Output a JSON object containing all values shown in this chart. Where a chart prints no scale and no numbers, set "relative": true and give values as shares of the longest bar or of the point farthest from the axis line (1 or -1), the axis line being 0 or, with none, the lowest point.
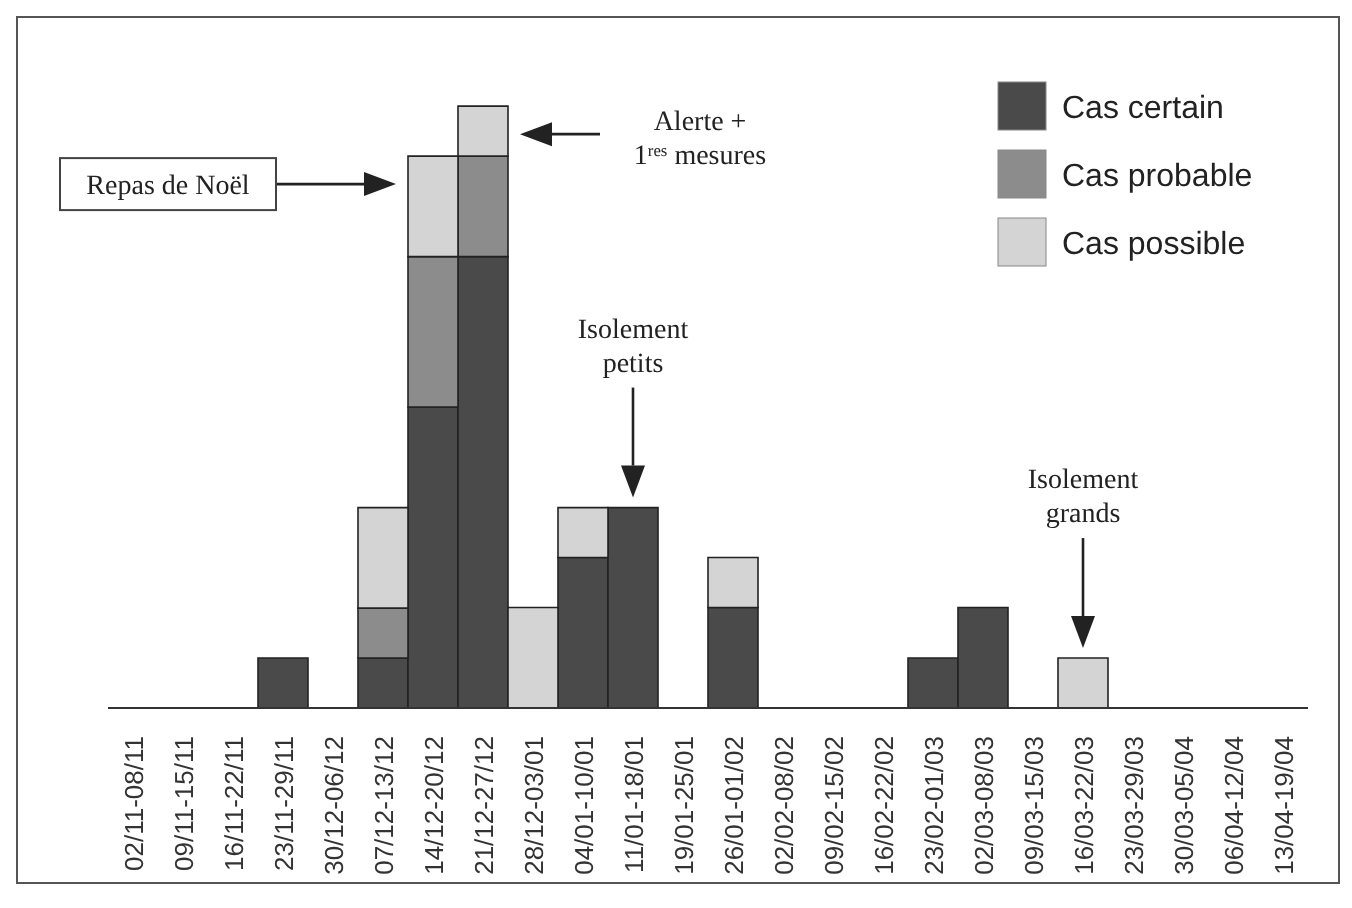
{
  "chart_data": {
    "type": "bar",
    "stacked": true,
    "relative": true,
    "legend": "top right",
    "categories": [
      "02/11-08/11",
      "09/11-15/11",
      "16/11-22/11",
      "23/11-29/11",
      "30/12-06/12",
      "07/12-13/12",
      "14/12-20/12",
      "21/12-27/12",
      "28/12-03/01",
      "04/01-10/01",
      "11/01-18/01",
      "19/01-25/01",
      "26/01-01/02",
      "02/02-08/02",
      "09/02-15/02",
      "16/02-22/02",
      "23/02-01/03",
      "02/03-08/03",
      "09/03-15/03",
      "16/03-22/03",
      "23/03-29/03",
      "30/03-05/04",
      "06/04-12/04",
      "13/04-19/04"
    ],
    "series": [
      {
        "name": "Cas certain",
        "color": "#4a4a4a",
        "values": [
          0,
          0,
          0,
          0.083,
          0,
          0.083,
          0.5,
          0.75,
          0,
          0.25,
          0.333,
          0,
          0.167,
          0,
          0,
          0,
          0.083,
          0.167,
          0,
          0,
          0,
          0,
          0,
          0
        ]
      },
      {
        "name": "Cas probable",
        "color": "#8c8c8c",
        "values": [
          0,
          0,
          0,
          0,
          0,
          0.083,
          0.25,
          0.167,
          0,
          0,
          0,
          0,
          0,
          0,
          0,
          0,
          0,
          0,
          0,
          0,
          0,
          0,
          0,
          0
        ]
      },
      {
        "name": "Cas possible",
        "color": "#d4d4d4",
        "values": [
          0,
          0,
          0,
          0,
          0,
          0.167,
          0.167,
          0.083,
          0.167,
          0.083,
          0,
          0,
          0.083,
          0,
          0,
          0,
          0,
          0,
          0,
          0.083,
          0,
          0,
          0,
          0
        ]
      }
    ],
    "annotations": [
      "Repas de Noël",
      "Alerte +\n1$^{res}$ mesures",
      "Isolement\npetits",
      "Isolement\ngrands"
    ]
  }
}
